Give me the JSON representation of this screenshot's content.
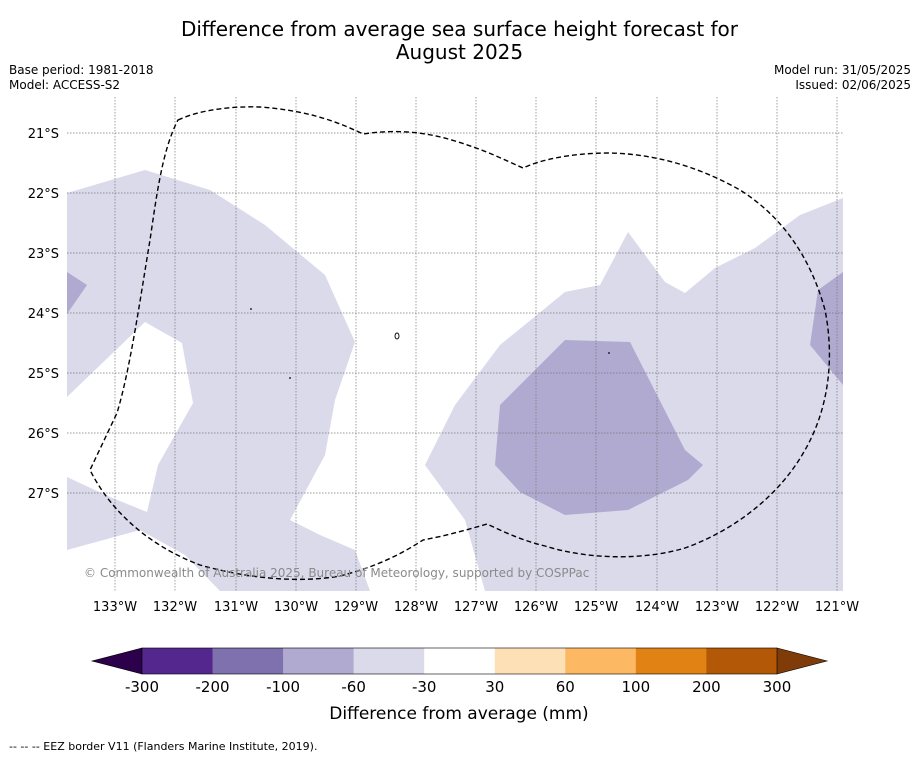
{
  "title_line1": "Difference from average sea surface height forecast for",
  "title_line2": "August 2025",
  "meta_left": {
    "base_period": "Base period: 1981-2018",
    "model": "Model: ACCESS-S2"
  },
  "meta_right": {
    "model_run": "Model run: 31/05/2025",
    "issued": "Issued: 02/06/2025"
  },
  "lon_labels": [
    "133°W",
    "132°W",
    "131°W",
    "130°W",
    "129°W",
    "128°W",
    "127°W",
    "126°W",
    "125°W",
    "124°W",
    "123°W",
    "122°W",
    "121°W"
  ],
  "lat_labels": [
    "21°S",
    "22°S",
    "23°S",
    "24°S",
    "25°S",
    "26°S",
    "27°S"
  ],
  "copyright": "© Commonwealth of Australia 2025, Bureau of Meteorology, supported by COSPPac",
  "colorbar": {
    "title": "Difference from average (mm)",
    "levels": [
      "-300",
      "-200",
      "-100",
      "-60",
      "-30",
      "30",
      "60",
      "100",
      "200",
      "300"
    ],
    "colors": [
      "#54278f",
      "#7e71ad",
      "#b0aad1",
      "#dadaeb",
      "#ffffff",
      "#fee0b6",
      "#fdb863",
      "#e08214",
      "#b35806"
    ],
    "under_color": "#2d004b",
    "over_color": "#7f3b08"
  },
  "footnote": "--  --  -- EEZ border V11 (Flanders Marine Institute, 2019)."
}
